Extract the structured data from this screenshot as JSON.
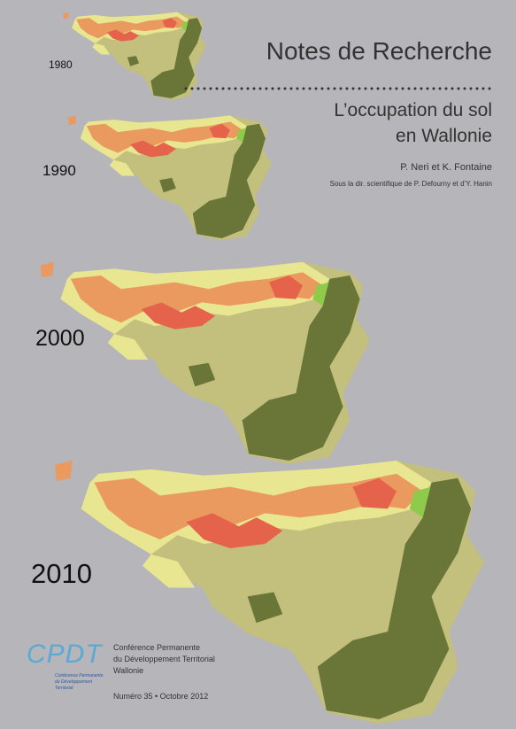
{
  "header": {
    "title": "Notes de Recherche",
    "subtitle_lines": [
      "L’occupation du sol",
      "en Wallonie"
    ],
    "authors": "P. Neri et K. Fontaine",
    "supervision": "Sous la dir. scientifique de P. Defourny et d’Y. Hanin"
  },
  "maps": [
    {
      "year": "1980"
    },
    {
      "year": "1990"
    },
    {
      "year": "2000"
    },
    {
      "year": "2010"
    }
  ],
  "logo": {
    "text": "CPDT",
    "caption_lines": [
      "Conférence Permanente",
      "du Développement",
      "Territorial"
    ]
  },
  "publisher": {
    "lines": [
      "Conférence Permanente",
      "du Développement Territorial",
      "Wallonie"
    ],
    "issue": "Numéro 35 • Octobre 2012"
  }
}
